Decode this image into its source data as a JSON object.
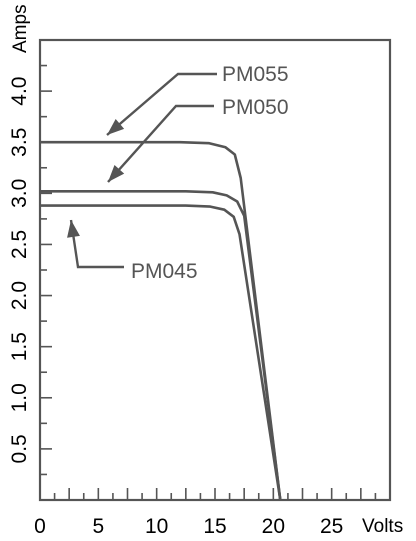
{
  "chart_data": {
    "type": "line",
    "xlabel": "Volts",
    "ylabel": "Amps",
    "xlim": [
      0,
      30
    ],
    "ylim": [
      0,
      4.5
    ],
    "x_ticks": [
      "0",
      "5",
      "10",
      "15",
      "20",
      "25"
    ],
    "y_ticks": [
      "0.5",
      "1.0",
      "1.5",
      "2.0",
      "2.5",
      "3.0",
      "3.5",
      "4.0"
    ],
    "grid": false,
    "series": [
      {
        "name": "PM055",
        "x": [
          0,
          12.0,
          14.5,
          15.9,
          16.7,
          17.2,
          20.6
        ],
        "y": [
          3.5,
          3.5,
          3.49,
          3.45,
          3.38,
          3.15,
          0
        ]
      },
      {
        "name": "PM050",
        "x": [
          0,
          12.5,
          14.8,
          16.0,
          16.9,
          17.5,
          20.6
        ],
        "y": [
          3.02,
          3.02,
          3.01,
          2.98,
          2.92,
          2.78,
          0
        ]
      },
      {
        "name": "PM045",
        "x": [
          0,
          12.5,
          14.6,
          15.8,
          16.6,
          17.1,
          20.6
        ],
        "y": [
          2.88,
          2.88,
          2.87,
          2.84,
          2.77,
          2.6,
          0
        ]
      }
    ]
  }
}
